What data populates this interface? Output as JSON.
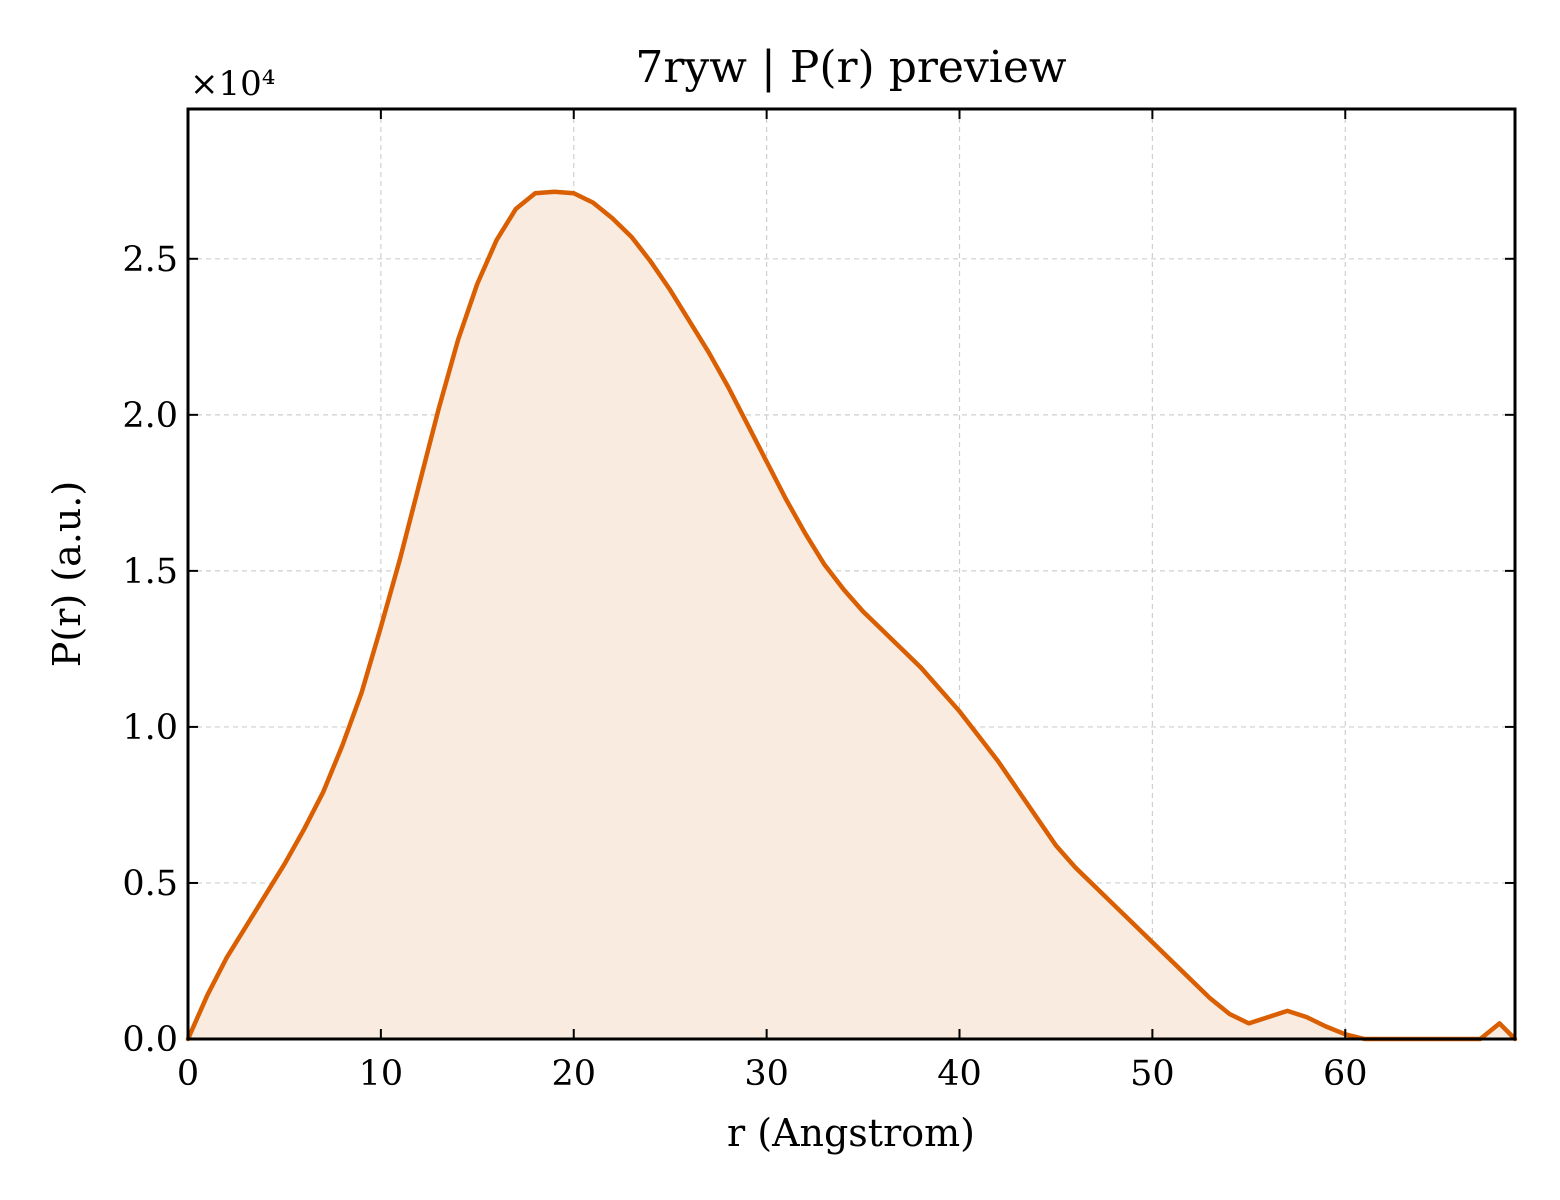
{
  "chart_data": {
    "type": "area",
    "title": "7ryw | P(r) preview",
    "xlabel": "r (Angstrom)",
    "ylabel": "P(r) (a.u.)",
    "y_multiplier_label": "×10⁴",
    "xlim": [
      0,
      68.8
    ],
    "ylim": [
      0,
      29800
    ],
    "x_ticks": [
      0,
      10,
      20,
      30,
      40,
      50,
      60
    ],
    "x_tick_labels": [
      "0",
      "10",
      "20",
      "30",
      "40",
      "50",
      "60"
    ],
    "y_ticks": [
      0,
      5000,
      10000,
      15000,
      20000,
      25000
    ],
    "y_tick_labels": [
      "0.0",
      "0.5",
      "1.0",
      "1.5",
      "2.0",
      "2.5"
    ],
    "grid": true,
    "line_color": "#d95f02",
    "fill_color": "#f9ebe0",
    "series": [
      {
        "x": [
          0,
          1,
          2,
          3,
          4,
          5,
          6,
          7,
          8,
          9,
          10,
          11,
          12,
          13,
          14,
          15,
          16,
          17,
          18,
          19,
          20,
          21,
          22,
          23,
          24,
          25,
          26,
          27,
          28,
          29,
          30,
          31,
          32,
          33,
          34,
          35,
          36,
          37,
          38,
          39,
          40,
          41,
          42,
          43,
          44,
          45,
          46,
          47,
          48,
          49,
          50,
          51,
          52,
          53,
          54,
          55,
          56,
          57,
          58,
          59,
          60,
          61,
          62,
          63,
          64,
          65,
          66,
          67,
          68,
          68.8
        ],
        "y": [
          0,
          1400,
          2600,
          3600,
          4600,
          5600,
          6700,
          7900,
          9400,
          11100,
          13200,
          15400,
          17800,
          20200,
          22400,
          24200,
          25600,
          26600,
          27100,
          27150,
          27100,
          26800,
          26300,
          25700,
          24900,
          24000,
          23000,
          22000,
          20900,
          19700,
          18500,
          17300,
          16200,
          15200,
          14400,
          13700,
          13100,
          12500,
          11900,
          11200,
          10500,
          9700,
          8900,
          8000,
          7100,
          6200,
          5500,
          4900,
          4300,
          3700,
          3100,
          2500,
          1900,
          1300,
          800,
          500,
          700,
          900,
          700,
          400,
          150,
          0,
          0,
          0,
          0,
          0,
          0,
          0,
          500,
          0
        ]
      }
    ]
  }
}
